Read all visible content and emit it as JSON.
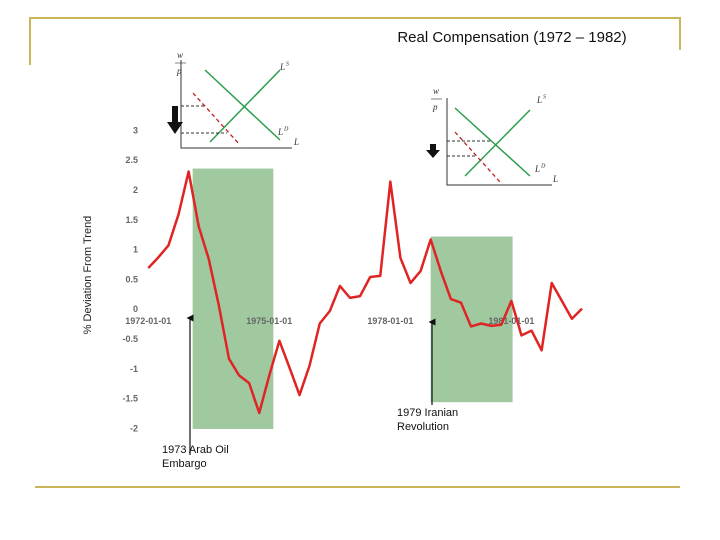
{
  "chart_data": {
    "type": "line",
    "title": "Real Compensation (1972 – 1982)",
    "y_label": "% Deviation From Trend",
    "x": [
      1972,
      1972.25,
      1972.5,
      1972.75,
      1973,
      1973.25,
      1973.5,
      1973.75,
      1974,
      1974.25,
      1974.5,
      1974.75,
      1975,
      1975.25,
      1975.5,
      1975.75,
      1976,
      1976.25,
      1976.5,
      1976.75,
      1977,
      1977.25,
      1977.5,
      1977.75,
      1978,
      1978.25,
      1978.5,
      1978.75,
      1979,
      1979.25,
      1979.5,
      1979.75,
      1980,
      1980.25,
      1980.5,
      1980.75,
      1981,
      1981.25,
      1981.5,
      1981.75,
      1982,
      1982.25,
      1982.5,
      1982.75
    ],
    "series": [
      {
        "name": "Real Compensation",
        "color": "#e02424",
        "values": [
          0.7,
          0.88,
          1.08,
          1.6,
          2.32,
          1.4,
          0.85,
          0.07,
          -0.82,
          -1.1,
          -1.23,
          -1.73,
          -1.1,
          -0.52,
          -0.97,
          -1.43,
          -0.93,
          -0.23,
          -0.02,
          0.4,
          0.2,
          0.23,
          0.55,
          0.57,
          2.15,
          0.87,
          0.45,
          0.65,
          1.18,
          0.65,
          0.18,
          0.12,
          -0.28,
          -0.23,
          -0.27,
          -0.25,
          0.15,
          -0.43,
          -0.35,
          -0.68,
          0.45,
          0.15,
          -0.15,
          0.02
        ]
      }
    ],
    "xlim": [
      1971.25,
      1982.75
    ],
    "xticks": [
      {
        "value": 1972,
        "label": "1972-01-01"
      },
      {
        "value": 1975,
        "label": "1975-01-01"
      },
      {
        "value": 1978,
        "label": "1978-01-01"
      },
      {
        "value": 1981,
        "label": "1981-01-01"
      }
    ],
    "ylim": [
      -2,
      3
    ],
    "yticks": [
      3,
      2.5,
      2,
      1.5,
      1,
      0.5,
      0,
      -0.5,
      -1,
      -1.5,
      -2
    ],
    "grid": false,
    "spans": [
      {
        "color": "#8fbf8f",
        "xlim": [
          1973.1,
          1975.1
        ],
        "ylim": [
          -2,
          2.37
        ]
      },
      {
        "color": "#8fbf8f",
        "xlim": [
          1979.0,
          1981.03
        ],
        "ylim": [
          -1.55,
          1.23
        ]
      }
    ],
    "annotations": [
      {
        "text": "1973 Arab Oil Embargo"
      },
      {
        "text": "1979 Iranian Revolution"
      }
    ]
  },
  "insets": [
    {
      "y_num": "w",
      "y_den": "p",
      "supply": {
        "base": "L",
        "sup": "S"
      },
      "demand": {
        "base": "L",
        "sup": "D"
      },
      "x_label": "L"
    },
    {
      "y_num": "w",
      "y_den": "p",
      "supply": {
        "base": "L",
        "sup": "S"
      },
      "demand": {
        "base": "L",
        "sup": "D"
      },
      "x_label": "L"
    }
  ]
}
